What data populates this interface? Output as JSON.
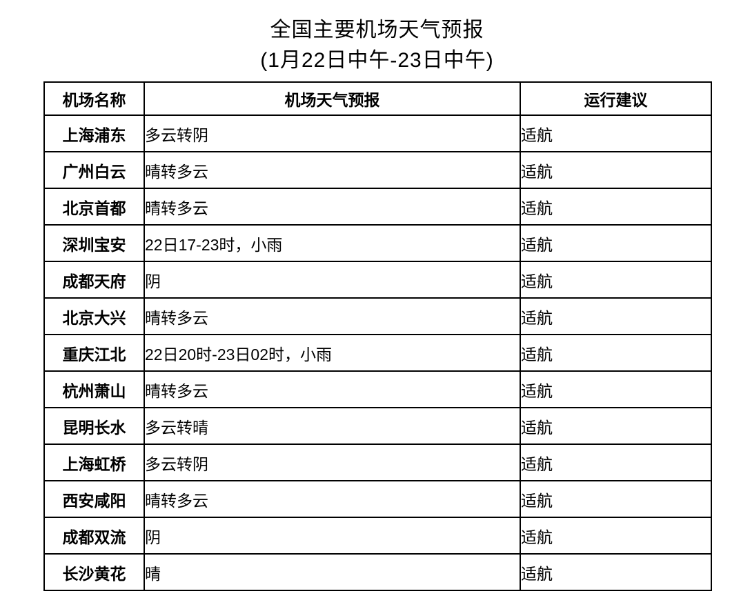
{
  "page": {
    "title": "全国主要机场天气预报",
    "subtitle": "(1月22日中午-23日中午)"
  },
  "colors": {
    "background": "#ffffff",
    "text": "#000000",
    "border": "#000000"
  },
  "table": {
    "headers": [
      "机场名称",
      "机场天气预报",
      "运行建议"
    ],
    "rows": [
      {
        "airport": "上海浦东",
        "forecast": "多云转阴",
        "advice": "适航"
      },
      {
        "airport": "广州白云",
        "forecast": "晴转多云",
        "advice": "适航"
      },
      {
        "airport": "北京首都",
        "forecast": "晴转多云",
        "advice": "适航"
      },
      {
        "airport": "深圳宝安",
        "forecast": "22日17-23时，小雨",
        "advice": "适航"
      },
      {
        "airport": "成都天府",
        "forecast": "阴",
        "advice": "适航"
      },
      {
        "airport": "北京大兴",
        "forecast": "晴转多云",
        "advice": "适航"
      },
      {
        "airport": "重庆江北",
        "forecast": "22日20时-23日02时，小雨",
        "advice": "适航"
      },
      {
        "airport": "杭州萧山",
        "forecast": "晴转多云",
        "advice": "适航"
      },
      {
        "airport": "昆明长水",
        "forecast": "多云转晴",
        "advice": "适航"
      },
      {
        "airport": "上海虹桥",
        "forecast": "多云转阴",
        "advice": "适航"
      },
      {
        "airport": "西安咸阳",
        "forecast": "晴转多云",
        "advice": "适航"
      },
      {
        "airport": "成都双流",
        "forecast": "阴",
        "advice": "适航"
      },
      {
        "airport": "长沙黄花",
        "forecast": "晴",
        "advice": "适航"
      }
    ]
  }
}
